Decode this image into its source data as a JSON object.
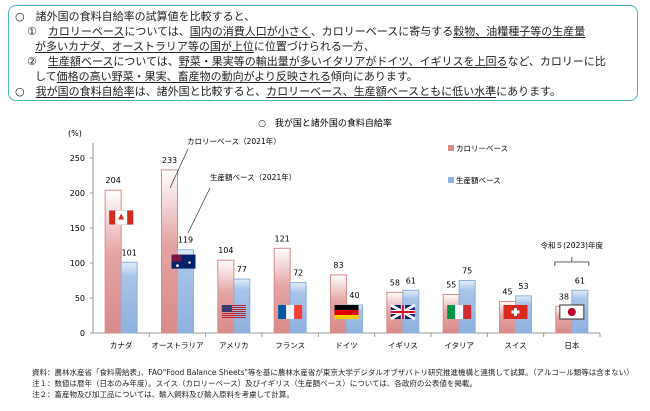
{
  "summary": {
    "l1": "○　諸外国の食料自給率の試算値を比較すると、",
    "l2a": "①　",
    "l2b": "カロリーベース",
    "l2c": "については、",
    "l2d": "国内の消費人口が小さく",
    "l2e": "、カロリーベースに寄与する",
    "l2f": "穀物、油糧種子等の生産量",
    "l3a": "が多いカナダ、オーストラリア等の国が上位",
    "l3b": "に位置づけられる一方、",
    "l4a": "②　",
    "l4b": "生産額ベース",
    "l4c": "については、",
    "l4d": "野菜・果実等の輸出量が多いイタリアがドイツ、イギリスを上回る",
    "l4e": "など、カロリーに比",
    "l5a": "して",
    "l5b": "価格の高い野菜・果実、畜産物の動向がより反映される",
    "l5c": "傾向にあります。",
    "l6a": "○　",
    "l6b": "我が国の食料自給率",
    "l6c": "は、諸外国と比較すると、",
    "l6d": "カロリーベース、生産額ベースともに低い水準",
    "l6e": "にあります。"
  },
  "chart_data": {
    "type": "bar",
    "title": "○　我が国と諸外国の食料自給率",
    "ylabel": "(%)",
    "ylim": [
      0,
      250
    ],
    "yticks": [
      0,
      50,
      100,
      150,
      200,
      250
    ],
    "categories": [
      "カナダ",
      "オーストラリア",
      "アメリカ",
      "フランス",
      "ドイツ",
      "イギリス",
      "イタリア",
      "スイス",
      "日本"
    ],
    "flags": [
      "canada",
      "australia",
      "usa",
      "france",
      "germany",
      "uk",
      "italy",
      "switzerland",
      "japan"
    ],
    "series": [
      {
        "name": "カロリーベース",
        "color": "#d98a8a",
        "values": [
          204,
          233,
          104,
          121,
          83,
          58,
          55,
          45,
          38
        ]
      },
      {
        "name": "生産額ベース",
        "color": "#8db0dd",
        "values": [
          101,
          119,
          77,
          72,
          40,
          61,
          75,
          53,
          61
        ]
      }
    ],
    "legend": "top-right",
    "annotations": {
      "calorie": "カロリーベース（2021年）",
      "production": "生産額ベース（2021年）",
      "japan_year": "令和５(2023)年度"
    }
  },
  "notes": [
    "資料：農林水産省「食料需給表」、FAO\"Food Balance Sheets\"等を基に農林水産省が東京大学デジタルオブザバトリ研究推進機構と連携して試算。（アルコール類等は含まない）",
    "注１：数値は暦年（日本のみ年度）。スイス（カロリーベース）及びイギリス（生産額ベース）については、各政府の公表値を掲載。",
    "注２：畜産物及び加工品については、輸入飼料及び輸入原料を考慮して計算。"
  ]
}
